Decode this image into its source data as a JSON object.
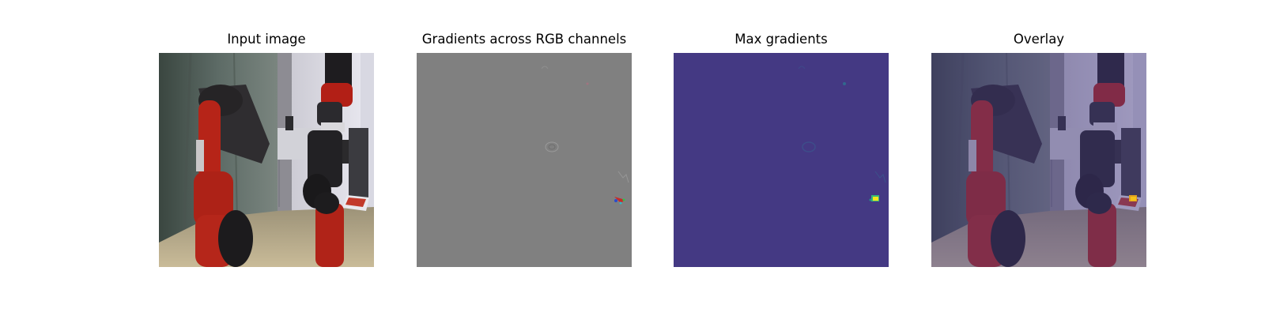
{
  "panels": [
    {
      "title": "Input image"
    },
    {
      "title": "Gradients across RGB channels"
    },
    {
      "title": "Max gradients"
    },
    {
      "title": "Overlay"
    }
  ],
  "colors": {
    "background": "#ffffff",
    "gradient_gray": "#808080",
    "max_gradient_purple": "#443983",
    "robot_red": "#b0221a",
    "highlight_yellow": "#f5e61a"
  }
}
